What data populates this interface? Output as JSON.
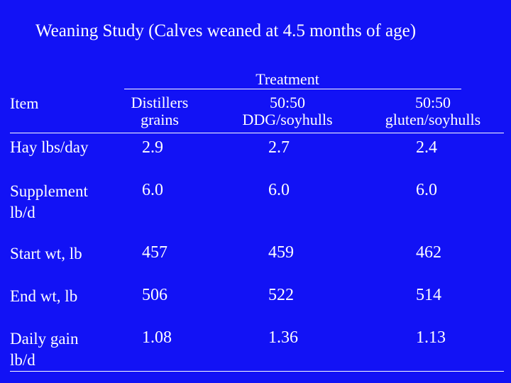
{
  "title": "Weaning Study  (Calves weaned at 4.5 months of age)",
  "table": {
    "item_header": "Item",
    "treatment_header": "Treatment",
    "columns": [
      {
        "line1": "Distillers",
        "line2": "grains"
      },
      {
        "line1": "50:50",
        "line2": "DDG/soyhulls"
      },
      {
        "line1": "50:50",
        "line2": "gluten/soyhulls"
      }
    ],
    "rows": [
      {
        "label_line1": "Hay lbs/day",
        "label_line2": "",
        "values": [
          "2.9",
          "2.7",
          "2.4"
        ]
      },
      {
        "label_line1": "Supplement",
        "label_line2": "lb/d",
        "values": [
          "6.0",
          "6.0",
          "6.0"
        ]
      },
      {
        "label_line1": "Start wt, lb",
        "label_line2": "",
        "values": [
          "457",
          "459",
          "462"
        ]
      },
      {
        "label_line1": "End wt, lb",
        "label_line2": "",
        "values": [
          "506",
          "522",
          "514"
        ]
      },
      {
        "label_line1": "Daily gain",
        "label_line2": "lb/d",
        "values": [
          "1.08",
          "1.36",
          "1.13"
        ]
      }
    ]
  },
  "colors": {
    "background": "#1212f5",
    "text": "#ffffff"
  }
}
